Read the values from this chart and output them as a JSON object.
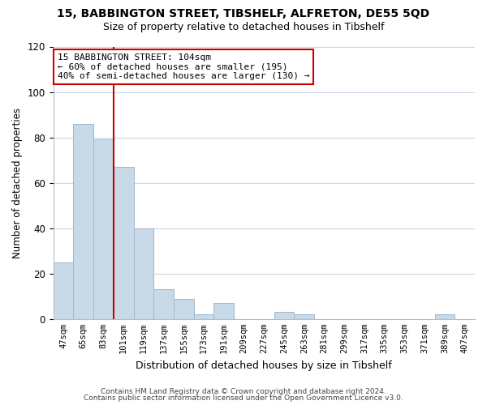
{
  "title1": "15, BABBINGTON STREET, TIBSHELF, ALFRETON, DE55 5QD",
  "title2": "Size of property relative to detached houses in Tibshelf",
  "xlabel": "Distribution of detached houses by size in Tibshelf",
  "ylabel": "Number of detached properties",
  "bar_labels": [
    "47sqm",
    "65sqm",
    "83sqm",
    "101sqm",
    "119sqm",
    "137sqm",
    "155sqm",
    "173sqm",
    "191sqm",
    "209sqm",
    "227sqm",
    "245sqm",
    "263sqm",
    "281sqm",
    "299sqm",
    "317sqm",
    "335sqm",
    "353sqm",
    "371sqm",
    "389sqm",
    "407sqm"
  ],
  "bar_values": [
    25,
    86,
    79,
    67,
    40,
    13,
    9,
    2,
    7,
    0,
    0,
    3,
    2,
    0,
    0,
    0,
    0,
    0,
    0,
    2,
    0
  ],
  "bar_color": "#c8d9e8",
  "bar_edgecolor": "#a0b8cc",
  "vline_color": "#cc0000",
  "annotation_text": "15 BABBINGTON STREET: 104sqm\n← 60% of detached houses are smaller (195)\n40% of semi-detached houses are larger (130) →",
  "annotation_box_edgecolor": "#cc0000",
  "annotation_box_facecolor": "#ffffff",
  "ylim": [
    0,
    120
  ],
  "yticks": [
    0,
    20,
    40,
    60,
    80,
    100,
    120
  ],
  "footer1": "Contains HM Land Registry data © Crown copyright and database right 2024.",
  "footer2": "Contains public sector information licensed under the Open Government Licence v3.0.",
  "background_color": "#ffffff",
  "grid_color": "#c8d8e8"
}
